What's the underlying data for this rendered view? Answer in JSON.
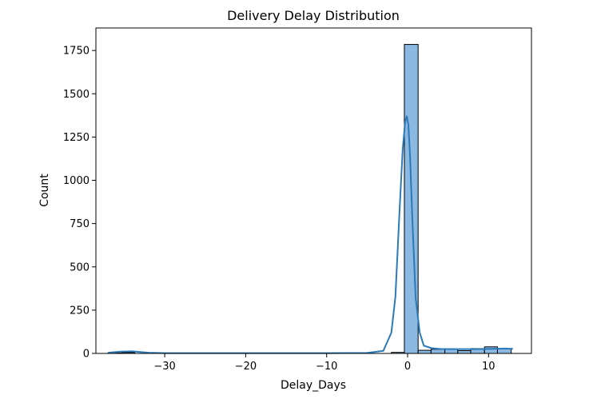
{
  "chart_data": {
    "type": "bar",
    "title": "Delivery Delay Distribution",
    "xlabel": "Delay_Days",
    "ylabel": "Count",
    "xlim": [
      -38.5,
      15.3
    ],
    "ylim": [
      0,
      1880
    ],
    "x_ticks": [
      -30,
      -20,
      -10,
      0,
      10
    ],
    "x_tick_labels": [
      "−30",
      "−20",
      "−10",
      "0",
      "10"
    ],
    "y_ticks": [
      0,
      250,
      500,
      750,
      1000,
      1250,
      1500,
      1750
    ],
    "y_tick_labels": [
      "0",
      "250",
      "500",
      "750",
      "1000",
      "1250",
      "1500",
      "1750"
    ],
    "bins": [
      {
        "x0": -37.0,
        "x1": -35.3,
        "count": 3
      },
      {
        "x0": -35.3,
        "x1": -33.7,
        "count": 5
      },
      {
        "x0": -2.0,
        "x1": -0.4,
        "count": 6
      },
      {
        "x0": -0.4,
        "x1": 1.3,
        "count": 1785
      },
      {
        "x0": 1.3,
        "x1": 2.9,
        "count": 18
      },
      {
        "x0": 2.9,
        "x1": 4.6,
        "count": 24
      },
      {
        "x0": 4.6,
        "x1": 6.2,
        "count": 25
      },
      {
        "x0": 6.2,
        "x1": 7.8,
        "count": 16
      },
      {
        "x0": 7.8,
        "x1": 9.5,
        "count": 28
      },
      {
        "x0": 9.5,
        "x1": 11.1,
        "count": 38
      },
      {
        "x0": 11.1,
        "x1": 12.8,
        "count": 27
      }
    ],
    "kde": {
      "x": [
        -37,
        -35.5,
        -34,
        -33,
        -32,
        -30,
        -20,
        -10,
        -5,
        -3,
        -2,
        -1.5,
        -1,
        -0.6,
        -0.3,
        -0.1,
        0.1,
        0.3,
        0.6,
        1,
        1.5,
        2,
        3,
        4,
        6,
        8,
        10,
        12,
        13
      ],
      "y": [
        4,
        10,
        12,
        8,
        4,
        2,
        2,
        2,
        3,
        15,
        120,
        330,
        820,
        1180,
        1340,
        1370,
        1320,
        1150,
        760,
        320,
        120,
        45,
        30,
        26,
        25,
        25,
        26,
        28,
        27
      ]
    },
    "bar_color": "#5b9bd5",
    "line_color": "#2a7ab8",
    "grid": false,
    "legend": "none"
  }
}
